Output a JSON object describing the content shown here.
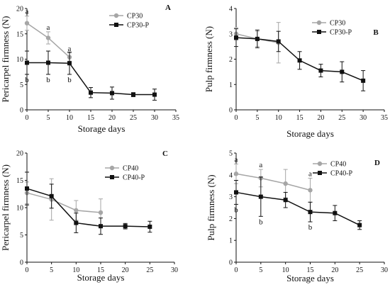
{
  "chart_data": [
    {
      "panel": "A",
      "type": "line",
      "xlabel": "Storage days",
      "ylabel": "Pericarpel firmness (N)",
      "xlim": [
        0,
        35
      ],
      "ylim": [
        0,
        20
      ],
      "xticks": [
        0,
        5,
        10,
        15,
        20,
        25,
        30,
        35
      ],
      "yticks": [
        0,
        5,
        10,
        15,
        20
      ],
      "legend": "top-right",
      "series": [
        {
          "name": "CP30",
          "color": "#a6a6a6",
          "marker": "circle",
          "x": [
            0,
            5,
            10
          ],
          "y": [
            17.1,
            14.2,
            10.4
          ],
          "err": [
            1.4,
            1.2,
            0.8
          ],
          "labels": [
            "a",
            "a",
            "a"
          ]
        },
        {
          "name": "CP30-P",
          "color": "#111111",
          "marker": "square",
          "x": [
            0,
            5,
            10,
            15,
            20,
            25,
            30
          ],
          "y": [
            9.3,
            9.3,
            9.2,
            3.4,
            3.3,
            3.0,
            3.0
          ],
          "err": [
            2.3,
            2.3,
            2.2,
            1.0,
            1.2,
            0.4,
            1.1
          ],
          "labels": [
            "b",
            "b",
            "b",
            "",
            "",
            "",
            ""
          ]
        }
      ]
    },
    {
      "panel": "B",
      "type": "line",
      "xlabel": "Storage days",
      "ylabel": "Pulp firmness (N)",
      "xlim": [
        0,
        35
      ],
      "ylim": [
        0,
        4
      ],
      "xticks": [
        0,
        5,
        10,
        15,
        20,
        25,
        30,
        35
      ],
      "yticks": [
        0,
        1,
        2,
        3,
        4
      ],
      "legend": "top-right",
      "series": [
        {
          "name": "CP30",
          "color": "#a6a6a6",
          "marker": "circle",
          "x": [
            0,
            5,
            10
          ],
          "y": [
            3.0,
            2.8,
            2.65
          ],
          "err": [
            0.25,
            0.3,
            0.8
          ],
          "labels": [
            "",
            "",
            ""
          ]
        },
        {
          "name": "CP30-P",
          "color": "#111111",
          "marker": "square",
          "x": [
            0,
            5,
            10,
            15,
            20,
            25,
            30
          ],
          "y": [
            2.85,
            2.8,
            2.7,
            1.95,
            1.55,
            1.5,
            1.15
          ],
          "err": [
            0.35,
            0.35,
            0.4,
            0.35,
            0.25,
            0.4,
            0.4
          ],
          "labels": [
            "",
            "",
            "",
            "",
            "",
            "",
            ""
          ]
        }
      ]
    },
    {
      "panel": "C",
      "type": "line",
      "xlabel": "Storage days",
      "ylabel": "Pericarpel firmness (N)",
      "xlim": [
        0,
        30
      ],
      "ylim": [
        0,
        20
      ],
      "xticks": [
        0,
        5,
        10,
        15,
        20,
        25,
        30
      ],
      "yticks": [
        0,
        5,
        10,
        15,
        20
      ],
      "legend": "top-right",
      "series": [
        {
          "name": "CP40",
          "color": "#a6a6a6",
          "marker": "circle",
          "x": [
            0,
            5,
            10,
            15
          ],
          "y": [
            12.7,
            11.5,
            9.5,
            9.1
          ],
          "err": [
            2.0,
            3.8,
            1.8,
            2.5
          ],
          "labels": [
            "",
            "",
            "",
            ""
          ]
        },
        {
          "name": "CP40-P",
          "color": "#111111",
          "marker": "square",
          "x": [
            0,
            5,
            10,
            15,
            20,
            25
          ],
          "y": [
            13.5,
            12.1,
            7.2,
            6.6,
            6.6,
            6.5
          ],
          "err": [
            3.0,
            2.2,
            1.8,
            1.5,
            0.5,
            1.0
          ],
          "labels": [
            "",
            "",
            "",
            "",
            "",
            ""
          ]
        }
      ]
    },
    {
      "panel": "D",
      "type": "line",
      "xlabel": "Storage days",
      "ylabel": "Pulp firmness (N)",
      "xlim": [
        0,
        30
      ],
      "ylim": [
        0,
        5
      ],
      "xticks": [
        0,
        5,
        10,
        15,
        20,
        25,
        30
      ],
      "yticks": [
        0,
        1,
        2,
        3,
        4,
        5
      ],
      "legend": "top-right",
      "series": [
        {
          "name": "CP40",
          "color": "#a6a6a6",
          "marker": "circle",
          "x": [
            0,
            5,
            10,
            15
          ],
          "y": [
            4.05,
            3.85,
            3.6,
            3.3
          ],
          "err": [
            0.45,
            0.4,
            0.65,
            0.55
          ],
          "labels": [
            "a",
            "a",
            "",
            "a"
          ]
        },
        {
          "name": "CP40-P",
          "color": "#111111",
          "marker": "square",
          "x": [
            0,
            5,
            10,
            15,
            20,
            25
          ],
          "y": [
            3.2,
            3.0,
            2.85,
            2.3,
            2.25,
            1.7
          ],
          "err": [
            0.55,
            0.9,
            0.35,
            0.45,
            0.35,
            0.2
          ],
          "labels": [
            "b",
            "b",
            "",
            "b",
            "",
            ""
          ]
        }
      ]
    }
  ]
}
